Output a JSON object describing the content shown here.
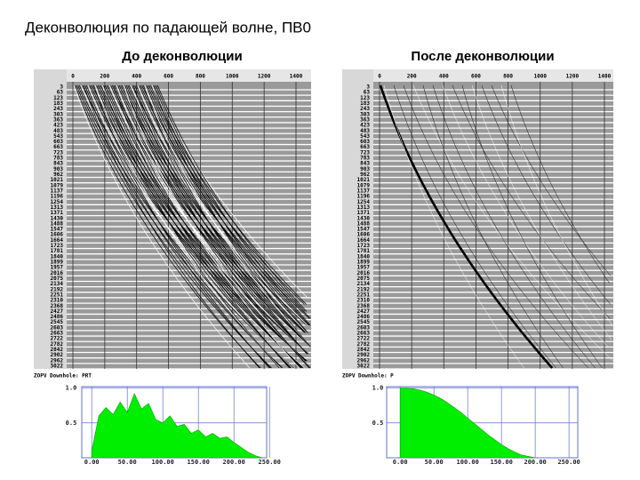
{
  "title": "Деконволюция по падающей волне, ПВ0",
  "time_ticks": [
    0,
    200,
    400,
    600,
    800,
    1000,
    1200,
    1400
  ],
  "depth_labels": [
    "3",
    "63",
    "123",
    "183",
    "243",
    "303",
    "363",
    "423",
    "483",
    "543",
    "603",
    "663",
    "723",
    "783",
    "843",
    "903",
    "962",
    "1021",
    "1079",
    "1137",
    "1196",
    "1254",
    "1313",
    "1371",
    "1430",
    "1488",
    "1547",
    "1606",
    "1664",
    "1723",
    "1781",
    "1840",
    "1899",
    "1957",
    "2016",
    "2075",
    "2134",
    "2192",
    "2251",
    "2310",
    "2368",
    "2427",
    "2486",
    "2545",
    "2603",
    "2663",
    "2722",
    "2782",
    "2842",
    "2902",
    "2962",
    "3022"
  ],
  "panels": [
    {
      "heading": "До деконволюции",
      "footer": "ZOPV  Downhole: PRT"
    },
    {
      "heading": "После деконволюции",
      "footer": "ZOPV  Downhole: P"
    }
  ],
  "chart_data": [
    {
      "type": "area",
      "color": "#00ee00",
      "x": [
        0,
        10,
        20,
        30,
        40,
        50,
        60,
        70,
        80,
        90,
        100,
        110,
        120,
        130,
        140,
        150,
        160,
        170,
        180,
        190,
        200,
        210,
        220,
        230,
        240
      ],
      "values": [
        0.1,
        0.6,
        0.72,
        0.62,
        0.8,
        0.65,
        0.92,
        0.7,
        0.78,
        0.55,
        0.5,
        0.6,
        0.45,
        0.48,
        0.35,
        0.4,
        0.3,
        0.35,
        0.28,
        0.3,
        0.22,
        0.15,
        0.08,
        0.03,
        0
      ],
      "xlim": [
        -14,
        246
      ],
      "ylim": [
        0,
        1.02
      ],
      "xticks": [
        {
          "value": 0,
          "label": "0.00"
        },
        {
          "value": 50,
          "label": "50.00"
        },
        {
          "value": 100,
          "label": "100.00"
        },
        {
          "value": 150,
          "label": "150.00"
        },
        {
          "value": 200,
          "label": "200.00"
        },
        {
          "value": 250,
          "label": "250.00"
        }
      ],
      "yticks": [
        {
          "value": 0.5,
          "label": "0.5"
        },
        {
          "value": 1,
          "label": "1.0"
        }
      ],
      "grid": true
    },
    {
      "type": "area",
      "color": "#00ee00",
      "x": [
        0,
        10,
        20,
        30,
        40,
        50,
        60,
        70,
        80,
        90,
        100,
        110,
        120,
        130,
        140,
        150,
        160,
        170,
        180,
        190,
        200
      ],
      "values": [
        1.0,
        1.0,
        0.99,
        0.97,
        0.94,
        0.9,
        0.85,
        0.79,
        0.72,
        0.65,
        0.57,
        0.49,
        0.41,
        0.33,
        0.26,
        0.19,
        0.13,
        0.08,
        0.04,
        0.02,
        0
      ],
      "xlim": [
        -20,
        263
      ],
      "ylim": [
        0,
        1.02
      ],
      "xticks": [
        {
          "value": 0,
          "label": "0.00"
        },
        {
          "value": 50,
          "label": "50.00"
        },
        {
          "value": 100,
          "label": "100.00"
        },
        {
          "value": 150,
          "label": "150.00"
        },
        {
          "value": 200,
          "label": "200.00"
        },
        {
          "value": 250,
          "label": "250.00"
        }
      ],
      "yticks": [
        {
          "value": 0.5,
          "label": "0.5"
        },
        {
          "value": 1,
          "label": "1.0"
        }
      ],
      "grid": true
    }
  ]
}
